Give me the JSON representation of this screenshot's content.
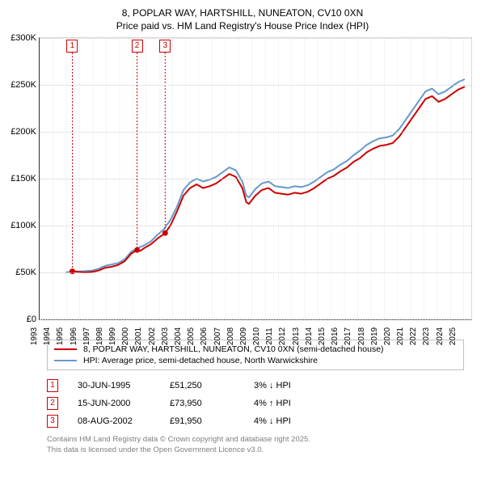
{
  "title": {
    "line1": "8, POPLAR WAY, HARTSHILL, NUNEATON, CV10 0XN",
    "line2": "Price paid vs. HM Land Registry's House Price Index (HPI)",
    "fontsize": 12,
    "color": "#000000"
  },
  "chart": {
    "type": "line",
    "background_color": "#ffffff",
    "grid_color": "#cccccc",
    "axis_color": "#333333",
    "ylim": [
      0,
      300000
    ],
    "ytick_step": 50000,
    "yticks": [
      "£0",
      "£50K",
      "£100K",
      "£150K",
      "£200K",
      "£250K",
      "£300K"
    ],
    "x_start_year": 1993,
    "x_end_year": 2026,
    "x_years": [
      1993,
      1994,
      1995,
      1996,
      1997,
      1998,
      1999,
      2000,
      2001,
      2002,
      2003,
      2004,
      2005,
      2006,
      2007,
      2008,
      2009,
      2010,
      2011,
      2012,
      2013,
      2014,
      2015,
      2016,
      2017,
      2018,
      2019,
      2020,
      2021,
      2022,
      2023,
      2024,
      2025
    ],
    "line_width": 2,
    "series": [
      {
        "name": "price_paid",
        "label": "8, POPLAR WAY, HARTSHILL, NUNEATON, CV10 0XN (semi-detached house)",
        "color": "#cc0000",
        "points": [
          [
            1995.5,
            51250
          ],
          [
            1996,
            50500
          ],
          [
            1996.5,
            50000
          ],
          [
            1997,
            50500
          ],
          [
            1997.5,
            52000
          ],
          [
            1998,
            55000
          ],
          [
            1998.5,
            56000
          ],
          [
            1999,
            58000
          ],
          [
            1999.5,
            62000
          ],
          [
            2000,
            70000
          ],
          [
            2000.45,
            73950
          ],
          [
            2000.7,
            73000
          ],
          [
            2001,
            76000
          ],
          [
            2001.5,
            80000
          ],
          [
            2002,
            86000
          ],
          [
            2002.6,
            91950
          ],
          [
            2003,
            100000
          ],
          [
            2003.5,
            115000
          ],
          [
            2004,
            132000
          ],
          [
            2004.5,
            140000
          ],
          [
            2005,
            144000
          ],
          [
            2005.5,
            140000
          ],
          [
            2006,
            142000
          ],
          [
            2006.5,
            145000
          ],
          [
            2007,
            150000
          ],
          [
            2007.5,
            155000
          ],
          [
            2008,
            152000
          ],
          [
            2008.5,
            140000
          ],
          [
            2008.8,
            125000
          ],
          [
            2009,
            123000
          ],
          [
            2009.5,
            132000
          ],
          [
            2010,
            138000
          ],
          [
            2010.5,
            140000
          ],
          [
            2011,
            135000
          ],
          [
            2011.5,
            134000
          ],
          [
            2012,
            133000
          ],
          [
            2012.5,
            135000
          ],
          [
            2013,
            134000
          ],
          [
            2013.5,
            136000
          ],
          [
            2014,
            140000
          ],
          [
            2014.5,
            145000
          ],
          [
            2015,
            150000
          ],
          [
            2015.5,
            153000
          ],
          [
            2016,
            158000
          ],
          [
            2016.5,
            162000
          ],
          [
            2017,
            168000
          ],
          [
            2017.5,
            172000
          ],
          [
            2018,
            178000
          ],
          [
            2018.5,
            182000
          ],
          [
            2019,
            185000
          ],
          [
            2019.5,
            186000
          ],
          [
            2020,
            188000
          ],
          [
            2020.5,
            195000
          ],
          [
            2021,
            205000
          ],
          [
            2021.5,
            215000
          ],
          [
            2022,
            225000
          ],
          [
            2022.5,
            235000
          ],
          [
            2023,
            238000
          ],
          [
            2023.5,
            232000
          ],
          [
            2024,
            235000
          ],
          [
            2024.5,
            240000
          ],
          [
            2025,
            245000
          ],
          [
            2025.5,
            248000
          ]
        ]
      },
      {
        "name": "hpi",
        "label": "HPI: Average price, semi-detached house, North Warwickshire",
        "color": "#6699cc",
        "points": [
          [
            1995,
            50000
          ],
          [
            1995.5,
            51250
          ],
          [
            1996,
            51000
          ],
          [
            1996.5,
            51500
          ],
          [
            1997,
            52000
          ],
          [
            1997.5,
            54000
          ],
          [
            1998,
            57000
          ],
          [
            1998.5,
            58500
          ],
          [
            1999,
            60000
          ],
          [
            1999.5,
            64000
          ],
          [
            2000,
            72000
          ],
          [
            2000.5,
            76000
          ],
          [
            2001,
            79000
          ],
          [
            2001.5,
            83000
          ],
          [
            2002,
            90000
          ],
          [
            2002.5,
            96000
          ],
          [
            2003,
            106000
          ],
          [
            2003.5,
            120000
          ],
          [
            2004,
            138000
          ],
          [
            2004.5,
            146000
          ],
          [
            2005,
            150000
          ],
          [
            2005.5,
            147000
          ],
          [
            2006,
            149000
          ],
          [
            2006.5,
            152000
          ],
          [
            2007,
            157000
          ],
          [
            2007.5,
            162000
          ],
          [
            2008,
            159000
          ],
          [
            2008.5,
            147000
          ],
          [
            2008.8,
            132000
          ],
          [
            2009,
            130000
          ],
          [
            2009.5,
            139000
          ],
          [
            2010,
            145000
          ],
          [
            2010.5,
            147000
          ],
          [
            2011,
            142000
          ],
          [
            2011.5,
            141000
          ],
          [
            2012,
            140000
          ],
          [
            2012.5,
            142000
          ],
          [
            2013,
            141000
          ],
          [
            2013.5,
            143000
          ],
          [
            2014,
            147000
          ],
          [
            2014.5,
            152000
          ],
          [
            2015,
            157000
          ],
          [
            2015.5,
            160000
          ],
          [
            2016,
            165000
          ],
          [
            2016.5,
            169000
          ],
          [
            2017,
            175000
          ],
          [
            2017.5,
            180000
          ],
          [
            2018,
            186000
          ],
          [
            2018.5,
            190000
          ],
          [
            2019,
            193000
          ],
          [
            2019.5,
            194000
          ],
          [
            2020,
            196000
          ],
          [
            2020.5,
            203000
          ],
          [
            2021,
            213000
          ],
          [
            2021.5,
            223000
          ],
          [
            2022,
            233000
          ],
          [
            2022.5,
            243000
          ],
          [
            2023,
            246000
          ],
          [
            2023.5,
            240000
          ],
          [
            2024,
            243000
          ],
          [
            2024.5,
            248000
          ],
          [
            2025,
            253000
          ],
          [
            2025.5,
            256000
          ]
        ]
      }
    ],
    "sale_markers": [
      {
        "n": "1",
        "year": 1995.5,
        "value": 51250
      },
      {
        "n": "2",
        "year": 2000.45,
        "value": 73950
      },
      {
        "n": "3",
        "year": 2002.6,
        "value": 91950
      }
    ]
  },
  "legend": {
    "items": [
      {
        "color": "#cc0000",
        "label": "8, POPLAR WAY, HARTSHILL, NUNEATON, CV10 0XN (semi-detached house)"
      },
      {
        "color": "#6699cc",
        "label": "HPI: Average price, semi-detached house, North Warwickshire"
      }
    ]
  },
  "sales": [
    {
      "n": "1",
      "date": "30-JUN-1995",
      "price": "£51,250",
      "hpi_delta": "3% ↓ HPI"
    },
    {
      "n": "2",
      "date": "15-JUN-2000",
      "price": "£73,950",
      "hpi_delta": "4% ↑ HPI"
    },
    {
      "n": "3",
      "date": "08-AUG-2002",
      "price": "£91,950",
      "hpi_delta": "4% ↓ HPI"
    }
  ],
  "license": {
    "line1": "Contains HM Land Registry data © Crown copyright and database right 2025.",
    "line2": "This data is licensed under the Open Government Licence v3.0."
  }
}
